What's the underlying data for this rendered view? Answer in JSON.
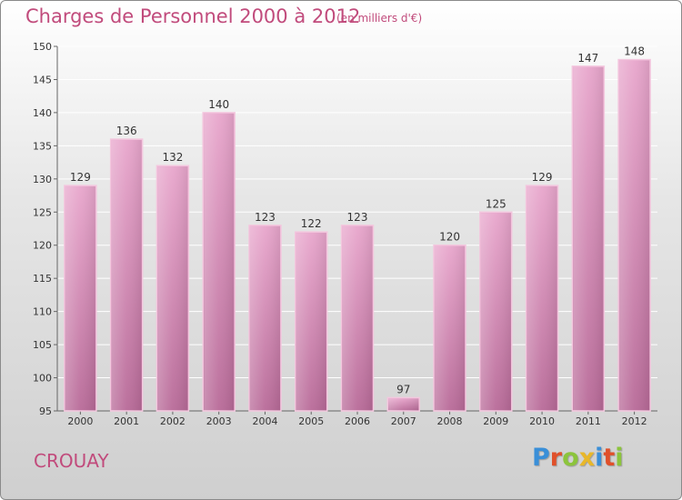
{
  "header": {
    "title": "Charges de Personnel 2000 à 2012",
    "subtitle": "(en milliers d'€)"
  },
  "footer": {
    "commune": "CROUAY",
    "logo": [
      "P",
      "r",
      "o",
      "x",
      "i",
      "t",
      "i"
    ],
    "logo_colors": [
      "#3a8fd8",
      "#e0502a",
      "#8cc43c",
      "#e8b72a",
      "#3a8fd8",
      "#e0502a",
      "#8cc43c"
    ]
  },
  "chart_data": {
    "type": "bar",
    "title": "Charges de Personnel 2000 à 2012",
    "subtitle": "(en milliers d'€)",
    "categories": [
      "2000",
      "2001",
      "2002",
      "2003",
      "2004",
      "2005",
      "2006",
      "2007",
      "2008",
      "2009",
      "2010",
      "2011",
      "2012"
    ],
    "values": [
      129,
      136,
      132,
      140,
      123,
      122,
      123,
      97,
      120,
      125,
      129,
      147,
      148
    ],
    "ylim": [
      95,
      150
    ],
    "yticks": [
      95,
      100,
      105,
      110,
      115,
      120,
      125,
      130,
      135,
      140,
      145,
      150
    ],
    "bar_color": "#d98cb6",
    "grid": true,
    "data_labels": true
  }
}
